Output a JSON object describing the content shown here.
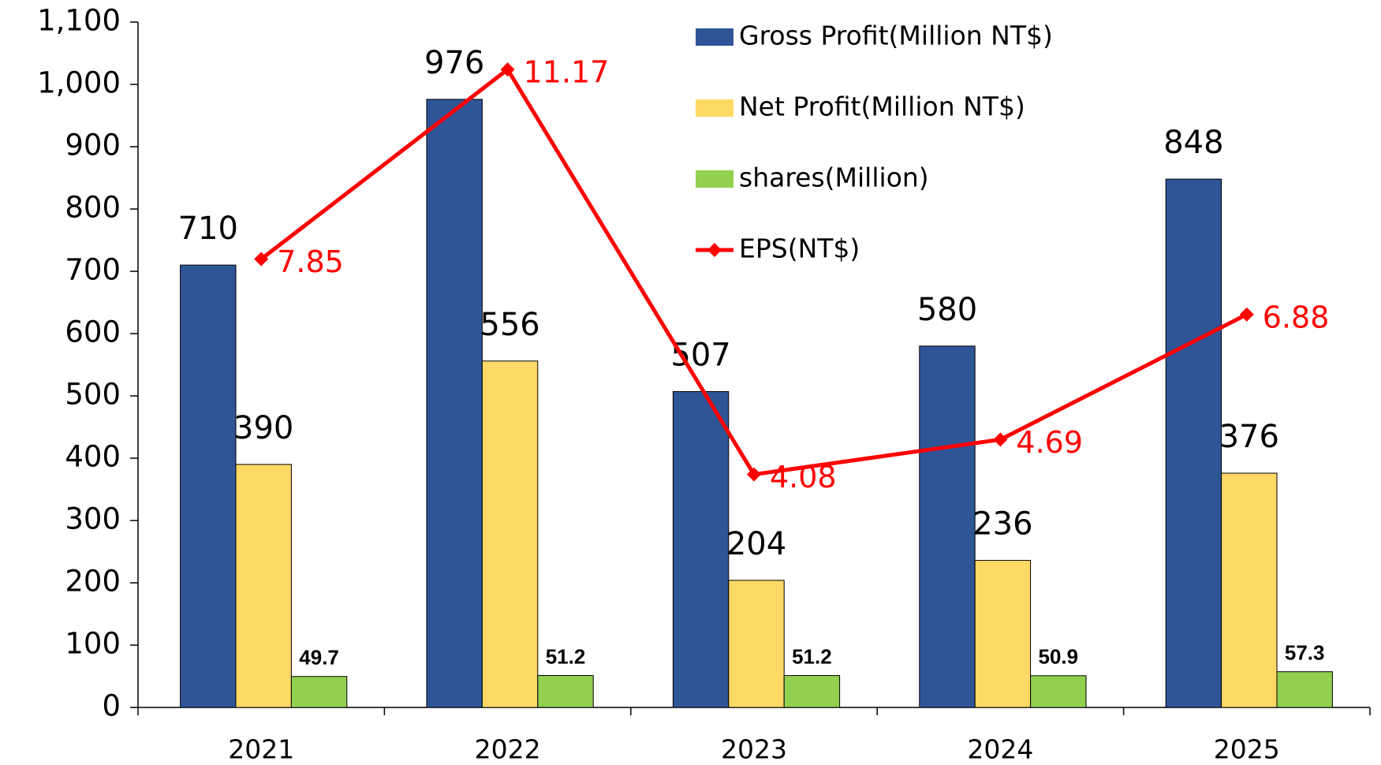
{
  "chart_data": {
    "type": "bar",
    "categories": [
      "2021",
      "2022",
      "2023",
      "2024",
      "2025"
    ],
    "series": [
      {
        "name": "Gross Profit(Million NT$)",
        "color": "#2f5597",
        "values": [
          710,
          976,
          507,
          580,
          848
        ]
      },
      {
        "name": "Net Profit(Million NT$)",
        "color": "#ffd966",
        "values": [
          390,
          556,
          204,
          236,
          376
        ]
      },
      {
        "name": "shares(Million)",
        "color": "#92d050",
        "values": [
          49.7,
          51.2,
          51.2,
          50.9,
          57.3
        ]
      },
      {
        "name": "EPS(NT$)",
        "color": "#ff0000",
        "type": "line",
        "axis": "y2",
        "values": [
          7.85,
          11.17,
          4.08,
          4.69,
          6.88
        ]
      }
    ],
    "ylim": [
      0,
      1100
    ],
    "yticks": [
      0,
      100,
      200,
      300,
      400,
      500,
      600,
      700,
      800,
      900,
      {
        "value": 1000,
        "label": "1,000"
      },
      {
        "value": 1100,
        "label": "1,100"
      }
    ],
    "y2lim": [
      0,
      12
    ],
    "legend": "top-right",
    "grid": false
  }
}
